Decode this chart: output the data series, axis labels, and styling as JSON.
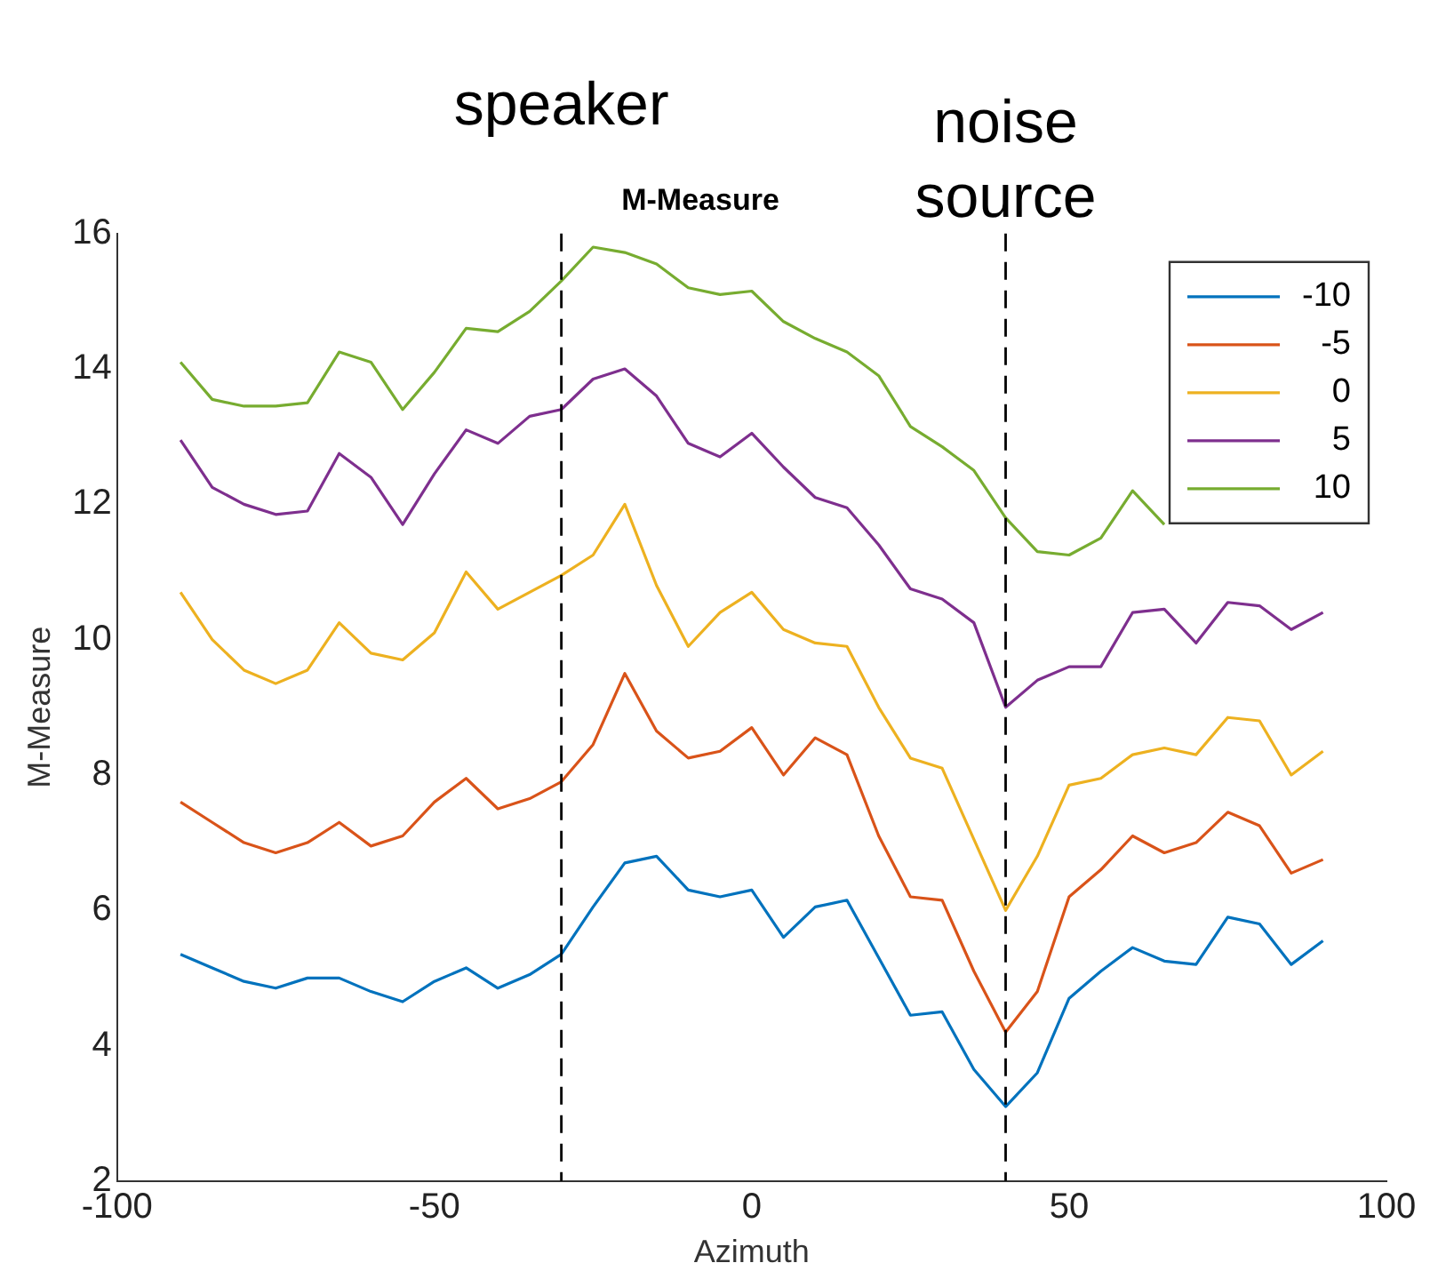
{
  "chart_data": {
    "type": "line",
    "title": "M-Measure",
    "xlabel": "Azimuth",
    "ylabel": "M-Measure",
    "x": [
      -90,
      -85,
      -80,
      -75,
      -70,
      -65,
      -60,
      -55,
      -50,
      -45,
      -40,
      -35,
      -30,
      -25,
      -20,
      -15,
      -10,
      -5,
      0,
      5,
      10,
      15,
      20,
      25,
      30,
      35,
      40,
      45,
      50,
      55,
      60,
      65,
      70,
      75,
      80,
      85,
      90
    ],
    "xlim": [
      -100,
      100
    ],
    "xticks": [
      -100,
      -50,
      0,
      50,
      100
    ],
    "ylim": [
      2,
      16
    ],
    "yticks": [
      2,
      4,
      6,
      8,
      10,
      12,
      14,
      16
    ],
    "grid": false,
    "legend": "top right",
    "marker": "none",
    "line_style": "solid",
    "ref_lines": [
      {
        "axis": "x",
        "value": -30,
        "label": "speaker",
        "color": "#000000",
        "line_style": "dashed"
      },
      {
        "axis": "x",
        "value": 40,
        "label": "noise source",
        "color": "#000000",
        "line_style": "dashed"
      }
    ],
    "series": [
      {
        "name": "-10",
        "color": "#0072bd",
        "values": [
          5.35,
          5.15,
          4.95,
          4.85,
          5.0,
          5.0,
          4.8,
          4.65,
          4.95,
          5.15,
          4.85,
          5.05,
          5.35,
          6.05,
          6.7,
          6.8,
          6.3,
          6.2,
          6.3,
          5.6,
          6.05,
          6.15,
          5.3,
          4.45,
          4.5,
          3.65,
          3.1,
          3.6,
          4.7,
          5.1,
          5.45,
          5.25,
          5.2,
          5.9,
          5.8,
          5.2,
          5.55
        ]
      },
      {
        "name": "-5",
        "color": "#d95319",
        "values": [
          7.6,
          7.3,
          7.0,
          6.85,
          7.0,
          7.3,
          6.95,
          7.1,
          7.6,
          7.95,
          7.5,
          7.65,
          7.9,
          8.45,
          9.5,
          8.65,
          8.25,
          8.35,
          8.7,
          8.0,
          8.55,
          8.3,
          7.1,
          6.2,
          6.15,
          5.1,
          4.2,
          4.8,
          6.2,
          6.6,
          7.1,
          6.85,
          7.0,
          7.45,
          7.25,
          6.55,
          6.75
        ]
      },
      {
        "name": "0",
        "color": "#edb120",
        "values": [
          10.7,
          10.0,
          9.55,
          9.35,
          9.55,
          10.25,
          9.8,
          9.7,
          10.1,
          11.0,
          10.45,
          10.7,
          10.95,
          11.25,
          12.0,
          10.8,
          9.9,
          10.4,
          10.7,
          10.15,
          9.95,
          9.9,
          9.0,
          8.25,
          8.1,
          7.05,
          6.0,
          6.8,
          7.85,
          7.95,
          8.3,
          8.4,
          8.3,
          8.85,
          8.8,
          8.0,
          8.35
        ]
      },
      {
        "name": "5",
        "color": "#7e2f8e",
        "values": [
          12.95,
          12.25,
          12.0,
          11.85,
          11.9,
          12.75,
          12.4,
          11.7,
          12.45,
          13.1,
          12.9,
          13.3,
          13.4,
          13.85,
          14.0,
          13.6,
          12.9,
          12.7,
          13.05,
          12.55,
          12.1,
          11.95,
          11.4,
          10.75,
          10.6,
          10.25,
          9.0,
          9.4,
          9.6,
          9.6,
          10.4,
          10.45,
          9.95,
          10.55,
          10.5,
          10.15,
          10.4
        ]
      },
      {
        "name": "10",
        "color": "#77ac30",
        "values": [
          14.1,
          13.55,
          13.45,
          13.45,
          13.5,
          14.25,
          14.1,
          13.4,
          13.95,
          14.6,
          14.55,
          14.85,
          15.3,
          15.8,
          15.72,
          15.55,
          15.2,
          15.1,
          15.15,
          14.7,
          14.45,
          14.25,
          13.9,
          13.15,
          12.85,
          12.5,
          11.8,
          11.3,
          11.25,
          11.5,
          12.2,
          11.7,
          null,
          null,
          null,
          null,
          null
        ]
      }
    ]
  }
}
